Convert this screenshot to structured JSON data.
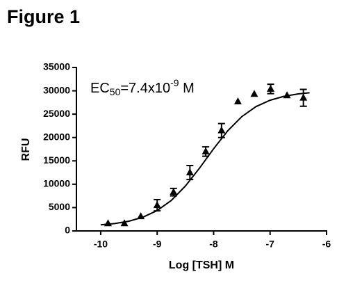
{
  "chart_data": {
    "type": "scatter",
    "title": "Figure 1",
    "x_label": "Log [TSH] M",
    "y_label": "RFU",
    "annotation": {
      "text": "EC",
      "sub": "50",
      "mid": "=7.4x10",
      "sup": "-9",
      "end": " M"
    },
    "x": [
      -9.87,
      -9.58,
      -9.29,
      -9.0,
      -8.71,
      -8.42,
      -8.14,
      -7.86,
      -7.57,
      -7.28,
      -6.99,
      -6.7,
      -6.41
    ],
    "values": [
      1600,
      1600,
      3100,
      5500,
      8300,
      12500,
      17000,
      21500,
      27700,
      29300,
      30400,
      29000,
      28500
    ],
    "errors": [
      null,
      null,
      null,
      1200,
      800,
      1500,
      1000,
      1500,
      null,
      null,
      1000,
      null,
      1800
    ],
    "color": "#000000",
    "curve": {
      "x": [
        -10,
        -9.75,
        -9.5,
        -9.25,
        -9,
        -8.75,
        -8.5,
        -8.25,
        -8,
        -7.75,
        -7.5,
        -7.25,
        -7,
        -6.75,
        -6.5,
        -6.3
      ],
      "values": [
        1290,
        1580,
        2090,
        2950,
        4360,
        6530,
        9610,
        13450,
        17610,
        21440,
        24480,
        26610,
        27990,
        28840,
        29340,
        29580
      ]
    },
    "xlim": [
      -10.43,
      -6
    ],
    "xticks": [
      -10,
      -9,
      -8,
      -7,
      -6
    ],
    "ylim": [
      0,
      35000
    ],
    "yticks": [
      0,
      5000,
      10000,
      15000,
      20000,
      25000,
      30000,
      35000
    ]
  }
}
